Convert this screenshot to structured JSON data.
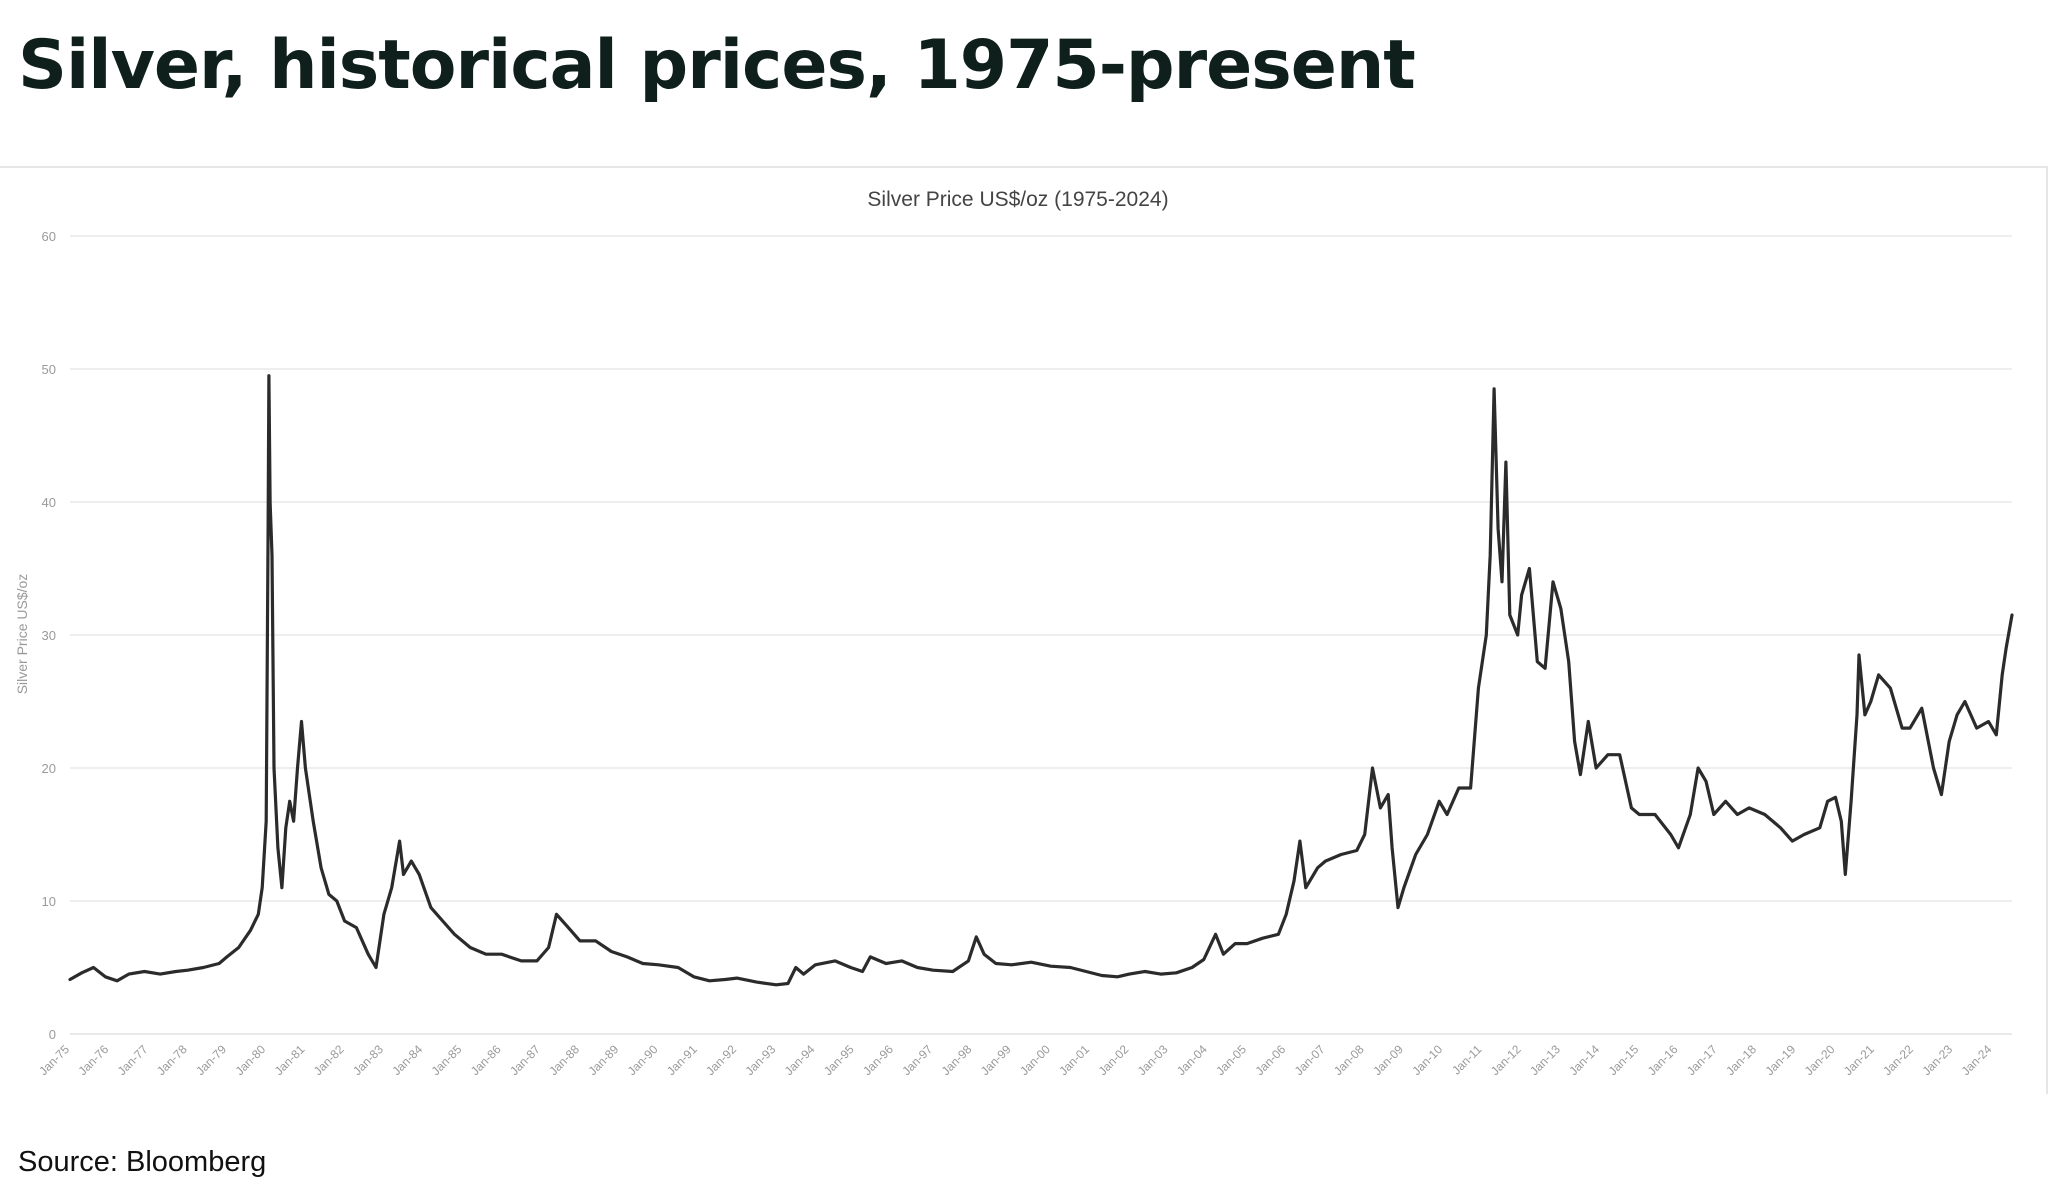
{
  "headline": "Silver, historical prices, 1975-present",
  "source": "Source: Bloomberg",
  "colors": {
    "line": "#2b2b2b",
    "grid": "#e9e9e9",
    "headline": "#0f1f1c"
  },
  "chart_data": {
    "type": "line",
    "title": "Silver Price US$/oz (1975-2024)",
    "xlabel": "",
    "ylabel": "Silver Price US$/oz",
    "ylim": [
      0,
      60
    ],
    "yticks": [
      0,
      10,
      20,
      30,
      40,
      50,
      60
    ],
    "grid": true,
    "x_range": [
      1975.0,
      2024.5
    ],
    "categories": [
      "Jan-75",
      "Jan-76",
      "Jan-77",
      "Jan-78",
      "Jan-79",
      "Jan-80",
      "Jan-81",
      "Jan-82",
      "Jan-83",
      "Jan-84",
      "Jan-85",
      "Jan-86",
      "Jan-87",
      "Jan-88",
      "Jan-89",
      "Jan-90",
      "Jan-91",
      "Jan-92",
      "Jan-93",
      "Jan-94",
      "Jan-95",
      "Jan-96",
      "Jan-97",
      "Jan-98",
      "Jan-99",
      "Jan-00",
      "Jan-01",
      "Jan-02",
      "Jan-03",
      "Jan-04",
      "Jan-05",
      "Jan-06",
      "Jan-07",
      "Jan-08",
      "Jan-09",
      "Jan-10",
      "Jan-11",
      "Jan-12",
      "Jan-13",
      "Jan-14",
      "Jan-15",
      "Jan-16",
      "Jan-17",
      "Jan-18",
      "Jan-19",
      "Jan-20",
      "Jan-21",
      "Jan-22",
      "Jan-23",
      "Jan-24"
    ],
    "series": [
      {
        "name": "Silver Price US$/oz",
        "points": [
          [
            1975.0,
            4.1
          ],
          [
            1975.3,
            4.6
          ],
          [
            1975.6,
            5.0
          ],
          [
            1975.9,
            4.3
          ],
          [
            1976.2,
            4.0
          ],
          [
            1976.5,
            4.5
          ],
          [
            1976.9,
            4.7
          ],
          [
            1977.3,
            4.5
          ],
          [
            1977.7,
            4.7
          ],
          [
            1978.0,
            4.8
          ],
          [
            1978.4,
            5.0
          ],
          [
            1978.8,
            5.3
          ],
          [
            1979.0,
            5.8
          ],
          [
            1979.3,
            6.5
          ],
          [
            1979.6,
            7.8
          ],
          [
            1979.8,
            9.0
          ],
          [
            1979.9,
            11.0
          ],
          [
            1980.0,
            16.0
          ],
          [
            1980.05,
            38.0
          ],
          [
            1980.07,
            49.5
          ],
          [
            1980.1,
            40.0
          ],
          [
            1980.15,
            36.0
          ],
          [
            1980.2,
            20.0
          ],
          [
            1980.3,
            14.0
          ],
          [
            1980.4,
            11.0
          ],
          [
            1980.5,
            15.5
          ],
          [
            1980.6,
            17.5
          ],
          [
            1980.7,
            16.0
          ],
          [
            1980.8,
            20.0
          ],
          [
            1980.9,
            23.5
          ],
          [
            1981.0,
            20.0
          ],
          [
            1981.2,
            16.0
          ],
          [
            1981.4,
            12.5
          ],
          [
            1981.6,
            10.5
          ],
          [
            1981.8,
            10.0
          ],
          [
            1982.0,
            8.5
          ],
          [
            1982.3,
            8.0
          ],
          [
            1982.6,
            6.0
          ],
          [
            1982.8,
            5.0
          ],
          [
            1983.0,
            9.0
          ],
          [
            1983.2,
            11.0
          ],
          [
            1983.4,
            14.5
          ],
          [
            1983.5,
            12.0
          ],
          [
            1983.7,
            13.0
          ],
          [
            1983.9,
            12.0
          ],
          [
            1984.2,
            9.5
          ],
          [
            1984.5,
            8.5
          ],
          [
            1984.8,
            7.5
          ],
          [
            1985.2,
            6.5
          ],
          [
            1985.6,
            6.0
          ],
          [
            1986.0,
            6.0
          ],
          [
            1986.5,
            5.5
          ],
          [
            1986.9,
            5.5
          ],
          [
            1987.2,
            6.5
          ],
          [
            1987.4,
            9.0
          ],
          [
            1987.7,
            8.0
          ],
          [
            1988.0,
            7.0
          ],
          [
            1988.4,
            7.0
          ],
          [
            1988.8,
            6.2
          ],
          [
            1989.2,
            5.8
          ],
          [
            1989.6,
            5.3
          ],
          [
            1990.0,
            5.2
          ],
          [
            1990.5,
            5.0
          ],
          [
            1990.9,
            4.3
          ],
          [
            1991.3,
            4.0
          ],
          [
            1991.7,
            4.1
          ],
          [
            1992.0,
            4.2
          ],
          [
            1992.5,
            3.9
          ],
          [
            1993.0,
            3.7
          ],
          [
            1993.3,
            3.8
          ],
          [
            1993.5,
            5.0
          ],
          [
            1993.7,
            4.5
          ],
          [
            1994.0,
            5.2
          ],
          [
            1994.5,
            5.5
          ],
          [
            1994.9,
            5.0
          ],
          [
            1995.2,
            4.7
          ],
          [
            1995.4,
            5.8
          ],
          [
            1995.8,
            5.3
          ],
          [
            1996.2,
            5.5
          ],
          [
            1996.6,
            5.0
          ],
          [
            1997.0,
            4.8
          ],
          [
            1997.5,
            4.7
          ],
          [
            1997.9,
            5.5
          ],
          [
            1998.1,
            7.3
          ],
          [
            1998.3,
            6.0
          ],
          [
            1998.6,
            5.3
          ],
          [
            1999.0,
            5.2
          ],
          [
            1999.5,
            5.4
          ],
          [
            2000.0,
            5.1
          ],
          [
            2000.5,
            5.0
          ],
          [
            2000.9,
            4.7
          ],
          [
            2001.3,
            4.4
          ],
          [
            2001.7,
            4.3
          ],
          [
            2002.0,
            4.5
          ],
          [
            2002.4,
            4.7
          ],
          [
            2002.8,
            4.5
          ],
          [
            2003.2,
            4.6
          ],
          [
            2003.6,
            5.0
          ],
          [
            2003.9,
            5.6
          ],
          [
            2004.2,
            7.5
          ],
          [
            2004.4,
            6.0
          ],
          [
            2004.7,
            6.8
          ],
          [
            2005.0,
            6.8
          ],
          [
            2005.4,
            7.2
          ],
          [
            2005.8,
            7.5
          ],
          [
            2006.0,
            9.0
          ],
          [
            2006.2,
            11.5
          ],
          [
            2006.35,
            14.5
          ],
          [
            2006.5,
            11.0
          ],
          [
            2006.8,
            12.5
          ],
          [
            2007.0,
            13.0
          ],
          [
            2007.4,
            13.5
          ],
          [
            2007.8,
            13.8
          ],
          [
            2008.0,
            15.0
          ],
          [
            2008.2,
            20.0
          ],
          [
            2008.4,
            17.0
          ],
          [
            2008.6,
            18.0
          ],
          [
            2008.7,
            14.0
          ],
          [
            2008.85,
            9.5
          ],
          [
            2009.0,
            11.0
          ],
          [
            2009.3,
            13.5
          ],
          [
            2009.6,
            15.0
          ],
          [
            2009.9,
            17.5
          ],
          [
            2010.1,
            16.5
          ],
          [
            2010.4,
            18.5
          ],
          [
            2010.7,
            18.5
          ],
          [
            2010.9,
            26.0
          ],
          [
            2011.1,
            30.0
          ],
          [
            2011.2,
            36.0
          ],
          [
            2011.3,
            48.5
          ],
          [
            2011.4,
            38.0
          ],
          [
            2011.5,
            34.0
          ],
          [
            2011.6,
            43.0
          ],
          [
            2011.7,
            31.5
          ],
          [
            2011.9,
            30.0
          ],
          [
            2012.0,
            33.0
          ],
          [
            2012.2,
            35.0
          ],
          [
            2012.4,
            28.0
          ],
          [
            2012.6,
            27.5
          ],
          [
            2012.8,
            34.0
          ],
          [
            2013.0,
            32.0
          ],
          [
            2013.2,
            28.0
          ],
          [
            2013.35,
            22.0
          ],
          [
            2013.5,
            19.5
          ],
          [
            2013.7,
            23.5
          ],
          [
            2013.9,
            20.0
          ],
          [
            2014.2,
            21.0
          ],
          [
            2014.5,
            21.0
          ],
          [
            2014.8,
            17.0
          ],
          [
            2015.0,
            16.5
          ],
          [
            2015.4,
            16.5
          ],
          [
            2015.8,
            15.0
          ],
          [
            2016.0,
            14.0
          ],
          [
            2016.3,
            16.5
          ],
          [
            2016.5,
            20.0
          ],
          [
            2016.7,
            19.0
          ],
          [
            2016.9,
            16.5
          ],
          [
            2017.2,
            17.5
          ],
          [
            2017.5,
            16.5
          ],
          [
            2017.8,
            17.0
          ],
          [
            2018.2,
            16.5
          ],
          [
            2018.6,
            15.5
          ],
          [
            2018.9,
            14.5
          ],
          [
            2019.2,
            15.0
          ],
          [
            2019.6,
            15.5
          ],
          [
            2019.8,
            17.5
          ],
          [
            2020.0,
            17.8
          ],
          [
            2020.15,
            16.0
          ],
          [
            2020.25,
            12.0
          ],
          [
            2020.4,
            17.5
          ],
          [
            2020.55,
            24.0
          ],
          [
            2020.6,
            28.5
          ],
          [
            2020.75,
            24.0
          ],
          [
            2020.9,
            25.0
          ],
          [
            2021.1,
            27.0
          ],
          [
            2021.4,
            26.0
          ],
          [
            2021.7,
            23.0
          ],
          [
            2021.9,
            23.0
          ],
          [
            2022.2,
            24.5
          ],
          [
            2022.5,
            20.0
          ],
          [
            2022.7,
            18.0
          ],
          [
            2022.9,
            22.0
          ],
          [
            2023.1,
            24.0
          ],
          [
            2023.3,
            25.0
          ],
          [
            2023.6,
            23.0
          ],
          [
            2023.9,
            23.5
          ],
          [
            2024.1,
            22.5
          ],
          [
            2024.25,
            27.0
          ],
          [
            2024.35,
            29.0
          ],
          [
            2024.5,
            31.5
          ]
        ]
      }
    ]
  }
}
